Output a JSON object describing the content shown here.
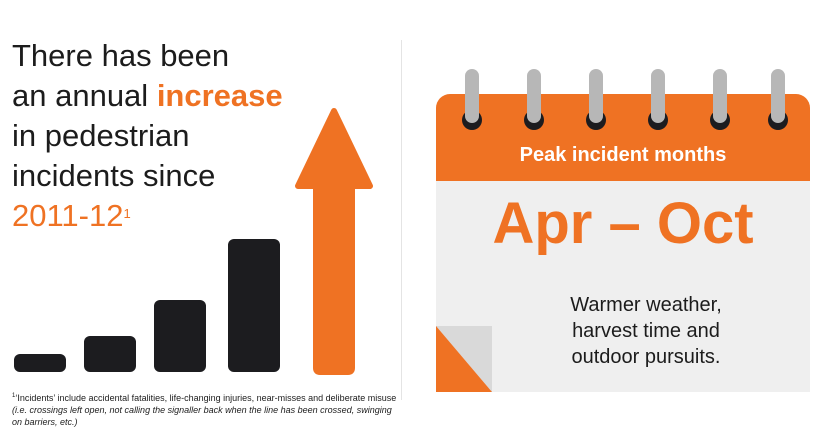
{
  "left": {
    "headline": {
      "line1": "There has been",
      "line2_prefix": "an annual ",
      "line2_accent": "increase",
      "line3": "in pedestrian",
      "line4": "incidents since",
      "year": "2011-12",
      "year_sup": "1"
    },
    "bars_icon": "rising-bars-icon",
    "arrow_icon": "up-arrow-icon",
    "footnote": {
      "sup": "1",
      "text": "‘Incidents’ include accidental fatalities, life-changing injuries, near-misses and deliberate misuse ",
      "italic": "(i.e. crossings left open, not calling the signaller back when the line has been crossed, swinging on barriers, etc.)"
    }
  },
  "calendar": {
    "icon": "calendar-icon",
    "header_title": "Peak incident months",
    "months": "Apr – Oct",
    "description_lines": [
      "Warmer weather,",
      "harvest time and",
      "outdoor pursuits."
    ]
  },
  "colors": {
    "accent": "#ef7223",
    "dark": "#1c1c1f",
    "calendar_body": "#efefef",
    "ring": "#b7b7b7"
  }
}
